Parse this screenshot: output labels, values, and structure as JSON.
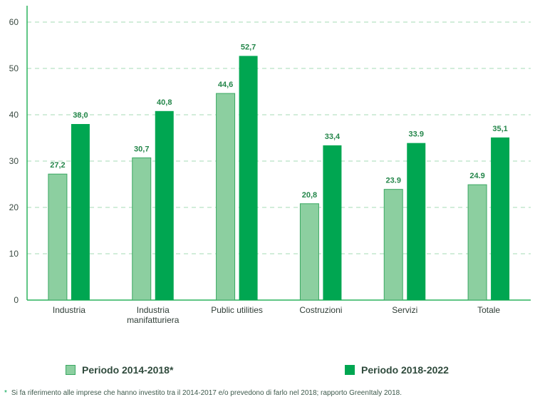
{
  "chart_data": {
    "type": "bar",
    "categories": [
      [
        "Industria"
      ],
      [
        "Industria",
        "manifatturiera"
      ],
      [
        "Public utilities"
      ],
      [
        "Costruzioni"
      ],
      [
        "Servizi"
      ],
      [
        "Totale"
      ]
    ],
    "series": [
      {
        "name": "Periodo 2014-2018*",
        "color": "#8ccfa0",
        "values": [
          27.2,
          30.7,
          44.6,
          20.8,
          23.9,
          24.9
        ],
        "labels": [
          "27,2",
          "30,7",
          "44,6",
          "20,8",
          "23.9",
          "24.9"
        ]
      },
      {
        "name": "Periodo 2018-2022",
        "color": "#00a651",
        "values": [
          38.0,
          40.8,
          52.7,
          33.4,
          33.9,
          35.1
        ],
        "labels": [
          "38,0",
          "40,8",
          "52,7",
          "33,4",
          "33.9",
          "35,1"
        ]
      }
    ],
    "ylim": [
      0,
      60
    ],
    "yticks": [
      0,
      10,
      20,
      30,
      40,
      50,
      60
    ],
    "grid": true,
    "legend": "bottom"
  },
  "legend": {
    "series1": "Periodo 2014-2018*",
    "series2": "Periodo 2018-2022"
  },
  "footnote": {
    "marker": "*",
    "text": "Si fa riferimento alle imprese che hanno investito tra il 2014-2017 e/o prevedono di farlo nel 2018; rapporto GreenItaly 2018."
  },
  "colors": {
    "light": "#8ccfa0",
    "dark": "#00a651",
    "axis": "#2bb45d",
    "grid": "#b7e2c4",
    "label": "#24864a"
  }
}
